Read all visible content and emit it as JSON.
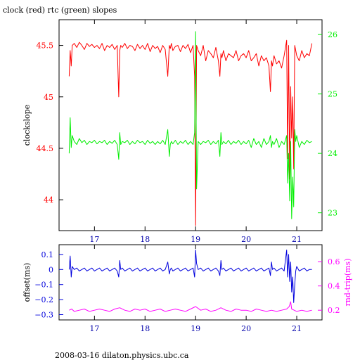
{
  "page": {
    "title": "clock (red) rtc (green) slopes",
    "footer": "2008-03-16 dilaton.physics.ubc.ca"
  },
  "colors": {
    "clock": "#ff0000",
    "rtc": "#00ee00",
    "offset": "#0000dd",
    "rndtrip": "#ff00ff",
    "frame": "#000000"
  },
  "chart_data": [
    {
      "type": "line",
      "title": "clock (red) rtc (green) slopes",
      "xlabel": "",
      "ylabel": "clockslope",
      "y2label": "",
      "xlim": [
        16.3,
        21.5
      ],
      "ylim": [
        43.7,
        45.75
      ],
      "y2lim": [
        22.7,
        26.25
      ],
      "x_ticks": [
        17,
        18,
        19,
        20,
        21
      ],
      "y_ticks": [
        44,
        44.5,
        45,
        45.5
      ],
      "y2_ticks": [
        23,
        24,
        25,
        26
      ],
      "grid": false,
      "series": [
        {
          "name": "clock",
          "color": "#ff0000",
          "axis": "left",
          "x": [
            16.5,
            16.52,
            16.54,
            16.56,
            16.6,
            16.65,
            16.7,
            16.75,
            16.8,
            16.85,
            16.9,
            16.95,
            17.0,
            17.05,
            17.1,
            17.15,
            17.2,
            17.25,
            17.3,
            17.35,
            17.4,
            17.45,
            17.48,
            17.5,
            17.52,
            17.55,
            17.6,
            17.65,
            17.7,
            17.75,
            17.8,
            17.85,
            17.9,
            17.95,
            18.0,
            18.05,
            18.1,
            18.15,
            18.2,
            18.25,
            18.3,
            18.35,
            18.4,
            18.45,
            18.48,
            18.5,
            18.52,
            18.55,
            18.6,
            18.65,
            18.7,
            18.75,
            18.8,
            18.85,
            18.9,
            18.95,
            18.98,
            19.0,
            19.02,
            19.05,
            19.1,
            19.15,
            19.2,
            19.25,
            19.3,
            19.35,
            19.4,
            19.45,
            19.48,
            19.5,
            19.52,
            19.55,
            19.6,
            19.65,
            19.7,
            19.75,
            19.8,
            19.85,
            19.9,
            19.95,
            20.0,
            20.05,
            20.1,
            20.15,
            20.2,
            20.25,
            20.3,
            20.35,
            20.4,
            20.45,
            20.48,
            20.5,
            20.52,
            20.55,
            20.6,
            20.65,
            20.7,
            20.75,
            20.8,
            20.82,
            20.84,
            20.86,
            20.88,
            20.9,
            20.92,
            20.94,
            20.96,
            20.98,
            21.0,
            21.05,
            21.1,
            21.15,
            21.2,
            21.25,
            21.3
          ],
          "y": [
            45.2,
            45.45,
            45.3,
            45.5,
            45.52,
            45.48,
            45.53,
            45.5,
            45.46,
            45.52,
            45.49,
            45.51,
            45.48,
            45.5,
            45.47,
            45.52,
            45.45,
            45.5,
            45.48,
            45.51,
            45.46,
            45.5,
            45.0,
            45.45,
            45.5,
            45.48,
            45.52,
            45.47,
            45.5,
            45.49,
            45.45,
            45.51,
            45.47,
            45.5,
            45.46,
            45.52,
            45.44,
            45.5,
            45.47,
            45.49,
            45.43,
            45.5,
            45.46,
            45.2,
            45.5,
            45.47,
            45.52,
            45.45,
            45.49,
            45.5,
            45.44,
            45.5,
            45.47,
            45.51,
            45.43,
            45.5,
            45.2,
            43.75,
            45.5,
            45.45,
            45.4,
            45.5,
            45.35,
            45.45,
            45.42,
            45.38,
            45.48,
            45.35,
            45.2,
            45.42,
            45.38,
            45.45,
            45.35,
            45.42,
            45.4,
            45.38,
            45.45,
            45.35,
            45.4,
            45.42,
            45.38,
            45.45,
            45.35,
            45.38,
            45.42,
            45.3,
            45.4,
            45.35,
            45.38,
            45.3,
            45.05,
            45.35,
            45.3,
            45.4,
            45.32,
            45.35,
            45.28,
            45.4,
            45.55,
            44.4,
            45.5,
            44.2,
            45.1,
            44.6,
            45.0,
            44.3,
            45.5,
            45.45,
            45.4,
            45.35,
            45.45,
            45.38,
            45.42,
            45.4,
            45.52
          ]
        },
        {
          "name": "rtc",
          "color": "#00ee00",
          "axis": "right",
          "x": [
            16.5,
            16.52,
            16.54,
            16.56,
            16.6,
            16.65,
            16.7,
            16.75,
            16.8,
            16.85,
            16.9,
            16.95,
            17.0,
            17.05,
            17.1,
            17.15,
            17.2,
            17.25,
            17.3,
            17.35,
            17.4,
            17.45,
            17.48,
            17.5,
            17.52,
            17.55,
            17.6,
            17.65,
            17.7,
            17.75,
            17.8,
            17.85,
            17.9,
            17.95,
            18.0,
            18.05,
            18.1,
            18.15,
            18.2,
            18.25,
            18.3,
            18.35,
            18.4,
            18.45,
            18.48,
            18.5,
            18.52,
            18.55,
            18.6,
            18.65,
            18.7,
            18.75,
            18.8,
            18.85,
            18.9,
            18.95,
            18.98,
            19.0,
            19.02,
            19.05,
            19.1,
            19.15,
            19.2,
            19.25,
            19.3,
            19.35,
            19.4,
            19.45,
            19.48,
            19.5,
            19.52,
            19.55,
            19.6,
            19.65,
            19.7,
            19.75,
            19.8,
            19.85,
            19.9,
            19.95,
            20.0,
            20.05,
            20.1,
            20.15,
            20.2,
            20.25,
            20.3,
            20.35,
            20.4,
            20.45,
            20.48,
            20.5,
            20.52,
            20.55,
            20.6,
            20.65,
            20.7,
            20.75,
            20.8,
            20.82,
            20.84,
            20.86,
            20.88,
            20.9,
            20.92,
            20.94,
            20.96,
            20.98,
            21.0,
            21.05,
            21.1,
            21.15,
            21.2,
            21.25,
            21.3
          ],
          "y": [
            24.0,
            24.6,
            24.1,
            24.3,
            24.2,
            24.15,
            24.25,
            24.18,
            24.22,
            24.15,
            24.2,
            24.18,
            24.22,
            24.16,
            24.2,
            24.18,
            24.22,
            24.15,
            24.2,
            24.17,
            24.22,
            24.15,
            23.9,
            24.35,
            24.15,
            24.2,
            24.18,
            24.22,
            24.15,
            24.2,
            24.16,
            24.22,
            24.18,
            24.2,
            24.15,
            24.22,
            24.17,
            24.2,
            24.15,
            24.2,
            24.16,
            24.22,
            24.15,
            24.4,
            23.95,
            24.15,
            24.2,
            24.16,
            24.22,
            24.15,
            24.2,
            24.17,
            24.22,
            24.15,
            24.2,
            24.15,
            24.35,
            26.05,
            23.4,
            24.2,
            24.15,
            24.2,
            24.18,
            24.22,
            24.15,
            24.2,
            24.16,
            24.22,
            23.95,
            24.35,
            24.15,
            24.2,
            24.16,
            24.22,
            24.15,
            24.2,
            24.17,
            24.22,
            24.15,
            24.2,
            24.16,
            24.22,
            24.1,
            24.25,
            24.15,
            24.2,
            24.1,
            24.25,
            24.15,
            24.2,
            24.3,
            24.1,
            24.2,
            24.15,
            24.25,
            24.1,
            24.2,
            24.15,
            24.3,
            23.5,
            24.0,
            23.2,
            24.2,
            22.9,
            23.6,
            23.1,
            24.4,
            24.2,
            24.3,
            24.1,
            24.2,
            24.15,
            24.22,
            24.18,
            24.2
          ]
        }
      ]
    },
    {
      "type": "line",
      "title": "",
      "xlabel": "",
      "ylabel": "offset(ms)",
      "y2label": "rnd-trip(ms)",
      "xlim": [
        16.3,
        21.5
      ],
      "ylim": [
        -0.335,
        0.165
      ],
      "y2lim": [
        0.12,
        0.74
      ],
      "x_ticks": [
        17,
        18,
        19,
        20,
        21
      ],
      "y_ticks": [
        0.1,
        0,
        -0.1,
        -0.2,
        -0.3
      ],
      "y_tick_labels": [
        "0.1",
        "0",
        "−0.1",
        "−0.2",
        "−0.3"
      ],
      "y2_ticks": [
        0.2,
        0.4,
        0.6
      ],
      "grid": false,
      "series": [
        {
          "name": "offset",
          "color": "#0000dd",
          "axis": "left",
          "x": [
            16.5,
            16.52,
            16.54,
            16.56,
            16.6,
            16.65,
            16.7,
            16.75,
            16.8,
            16.85,
            16.9,
            16.95,
            17.0,
            17.05,
            17.1,
            17.15,
            17.2,
            17.25,
            17.3,
            17.35,
            17.4,
            17.45,
            17.48,
            17.5,
            17.52,
            17.55,
            17.6,
            17.65,
            17.7,
            17.75,
            17.8,
            17.85,
            17.9,
            17.95,
            18.0,
            18.05,
            18.1,
            18.15,
            18.2,
            18.25,
            18.3,
            18.35,
            18.4,
            18.45,
            18.48,
            18.5,
            18.52,
            18.55,
            18.6,
            18.65,
            18.7,
            18.75,
            18.8,
            18.85,
            18.9,
            18.95,
            18.98,
            19.0,
            19.02,
            19.05,
            19.1,
            19.15,
            19.2,
            19.25,
            19.3,
            19.35,
            19.4,
            19.45,
            19.48,
            19.5,
            19.52,
            19.55,
            19.6,
            19.65,
            19.7,
            19.75,
            19.8,
            19.85,
            19.9,
            19.95,
            20.0,
            20.05,
            20.1,
            20.15,
            20.2,
            20.25,
            20.3,
            20.35,
            20.4,
            20.45,
            20.48,
            20.5,
            20.52,
            20.55,
            20.6,
            20.65,
            20.7,
            20.75,
            20.8,
            20.82,
            20.84,
            20.86,
            20.88,
            20.9,
            20.92,
            20.94,
            20.96,
            20.98,
            21.0,
            21.05,
            21.1,
            21.15,
            21.2,
            21.25,
            21.3
          ],
          "y": [
            0.0,
            0.09,
            -0.05,
            0.02,
            0.0,
            0.01,
            -0.01,
            0.0,
            0.01,
            -0.01,
            0.0,
            0.01,
            -0.01,
            0.0,
            0.01,
            -0.01,
            0.0,
            0.01,
            -0.01,
            0.0,
            0.01,
            -0.01,
            -0.05,
            0.06,
            0.0,
            0.01,
            -0.01,
            0.0,
            0.01,
            -0.01,
            0.0,
            0.01,
            -0.01,
            0.0,
            0.01,
            -0.01,
            0.0,
            0.01,
            -0.01,
            0.0,
            0.01,
            -0.01,
            0.0,
            0.05,
            -0.03,
            0.0,
            0.01,
            -0.01,
            0.0,
            0.01,
            -0.01,
            0.0,
            0.01,
            -0.01,
            0.0,
            0.01,
            -0.05,
            0.13,
            0.04,
            0.0,
            0.01,
            -0.01,
            0.0,
            0.01,
            -0.01,
            0.0,
            0.01,
            -0.01,
            -0.04,
            0.06,
            0.0,
            0.01,
            -0.01,
            0.0,
            0.01,
            -0.01,
            0.0,
            0.01,
            -0.01,
            0.0,
            0.01,
            -0.01,
            0.0,
            0.01,
            -0.01,
            0.0,
            0.01,
            -0.01,
            0.0,
            0.01,
            -0.04,
            0.05,
            0.0,
            0.01,
            -0.01,
            0.0,
            0.01,
            -0.01,
            0.13,
            -0.05,
            0.1,
            -0.08,
            0.05,
            -0.15,
            -0.05,
            -0.22,
            -0.1,
            -0.01,
            0.02,
            -0.01,
            0.0,
            0.01,
            -0.01,
            0.0,
            0.0
          ]
        },
        {
          "name": "rnd-trip",
          "color": "#ff00ff",
          "axis": "right",
          "x": [
            16.5,
            16.55,
            16.6,
            16.7,
            16.8,
            16.9,
            17.0,
            17.1,
            17.2,
            17.3,
            17.4,
            17.5,
            17.6,
            17.7,
            17.8,
            17.9,
            18.0,
            18.1,
            18.2,
            18.3,
            18.4,
            18.5,
            18.6,
            18.7,
            18.8,
            18.9,
            19.0,
            19.1,
            19.2,
            19.3,
            19.4,
            19.5,
            19.6,
            19.7,
            19.8,
            19.9,
            20.0,
            20.1,
            20.2,
            20.3,
            20.4,
            20.5,
            20.6,
            20.7,
            20.8,
            20.85,
            20.88,
            20.9,
            20.95,
            21.0,
            21.1,
            21.2,
            21.3
          ],
          "y": [
            0.2,
            0.21,
            0.19,
            0.2,
            0.21,
            0.19,
            0.2,
            0.21,
            0.2,
            0.19,
            0.21,
            0.22,
            0.2,
            0.19,
            0.21,
            0.2,
            0.21,
            0.19,
            0.2,
            0.21,
            0.19,
            0.2,
            0.21,
            0.2,
            0.19,
            0.21,
            0.23,
            0.2,
            0.21,
            0.19,
            0.2,
            0.22,
            0.2,
            0.19,
            0.21,
            0.2,
            0.2,
            0.19,
            0.21,
            0.2,
            0.19,
            0.2,
            0.19,
            0.2,
            0.21,
            0.23,
            0.27,
            0.21,
            0.2,
            0.19,
            0.2,
            0.19,
            0.2
          ]
        }
      ]
    }
  ]
}
